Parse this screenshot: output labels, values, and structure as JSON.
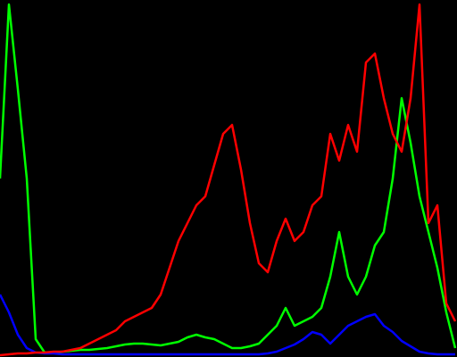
{
  "chart_data": {
    "type": "line",
    "x": [
      0,
      5,
      10,
      15,
      20,
      25,
      30,
      35,
      40,
      45,
      50,
      55,
      60,
      65,
      70,
      75,
      80,
      85,
      90,
      95,
      100,
      105,
      110,
      115,
      120,
      125,
      130,
      135,
      140,
      145,
      150,
      155,
      160,
      165,
      170,
      175,
      180,
      185,
      190,
      195,
      200,
      205,
      210,
      215,
      220,
      225,
      230,
      235,
      240,
      245,
      250,
      255
    ],
    "xlim": [
      0,
      256
    ],
    "ylim": [
      0,
      400
    ],
    "background": "#000000",
    "series": [
      {
        "color": "#00ff00",
        "values": [
          200,
          395,
          300,
          200,
          20,
          5,
          5,
          6,
          7,
          8,
          8,
          9,
          10,
          12,
          14,
          15,
          15,
          14,
          13,
          15,
          17,
          22,
          25,
          22,
          20,
          15,
          10,
          10,
          12,
          15,
          25,
          35,
          55,
          35,
          40,
          45,
          55,
          90,
          140,
          90,
          70,
          90,
          125,
          140,
          200,
          290,
          240,
          180,
          140,
          100,
          50,
          10
        ]
      },
      {
        "color": "#0000ff",
        "values": [
          70,
          50,
          25,
          10,
          5,
          4,
          4,
          3,
          3,
          3,
          3,
          3,
          3,
          3,
          3,
          3,
          3,
          3,
          3,
          3,
          3,
          3,
          3,
          3,
          3,
          3,
          3,
          3,
          3,
          3,
          4,
          6,
          10,
          14,
          20,
          28,
          25,
          15,
          25,
          35,
          40,
          45,
          48,
          35,
          28,
          18,
          12,
          6,
          4,
          3,
          3,
          3
        ]
      },
      {
        "color": "#ff0000",
        "values": [
          2,
          3,
          4,
          4,
          5,
          5,
          6,
          6,
          8,
          10,
          15,
          20,
          25,
          30,
          40,
          45,
          50,
          55,
          70,
          100,
          130,
          150,
          170,
          180,
          215,
          250,
          260,
          210,
          150,
          105,
          95,
          130,
          155,
          130,
          140,
          170,
          180,
          250,
          220,
          260,
          230,
          330,
          340,
          290,
          250,
          230,
          290,
          395,
          150,
          170,
          60,
          40
        ]
      }
    ]
  }
}
